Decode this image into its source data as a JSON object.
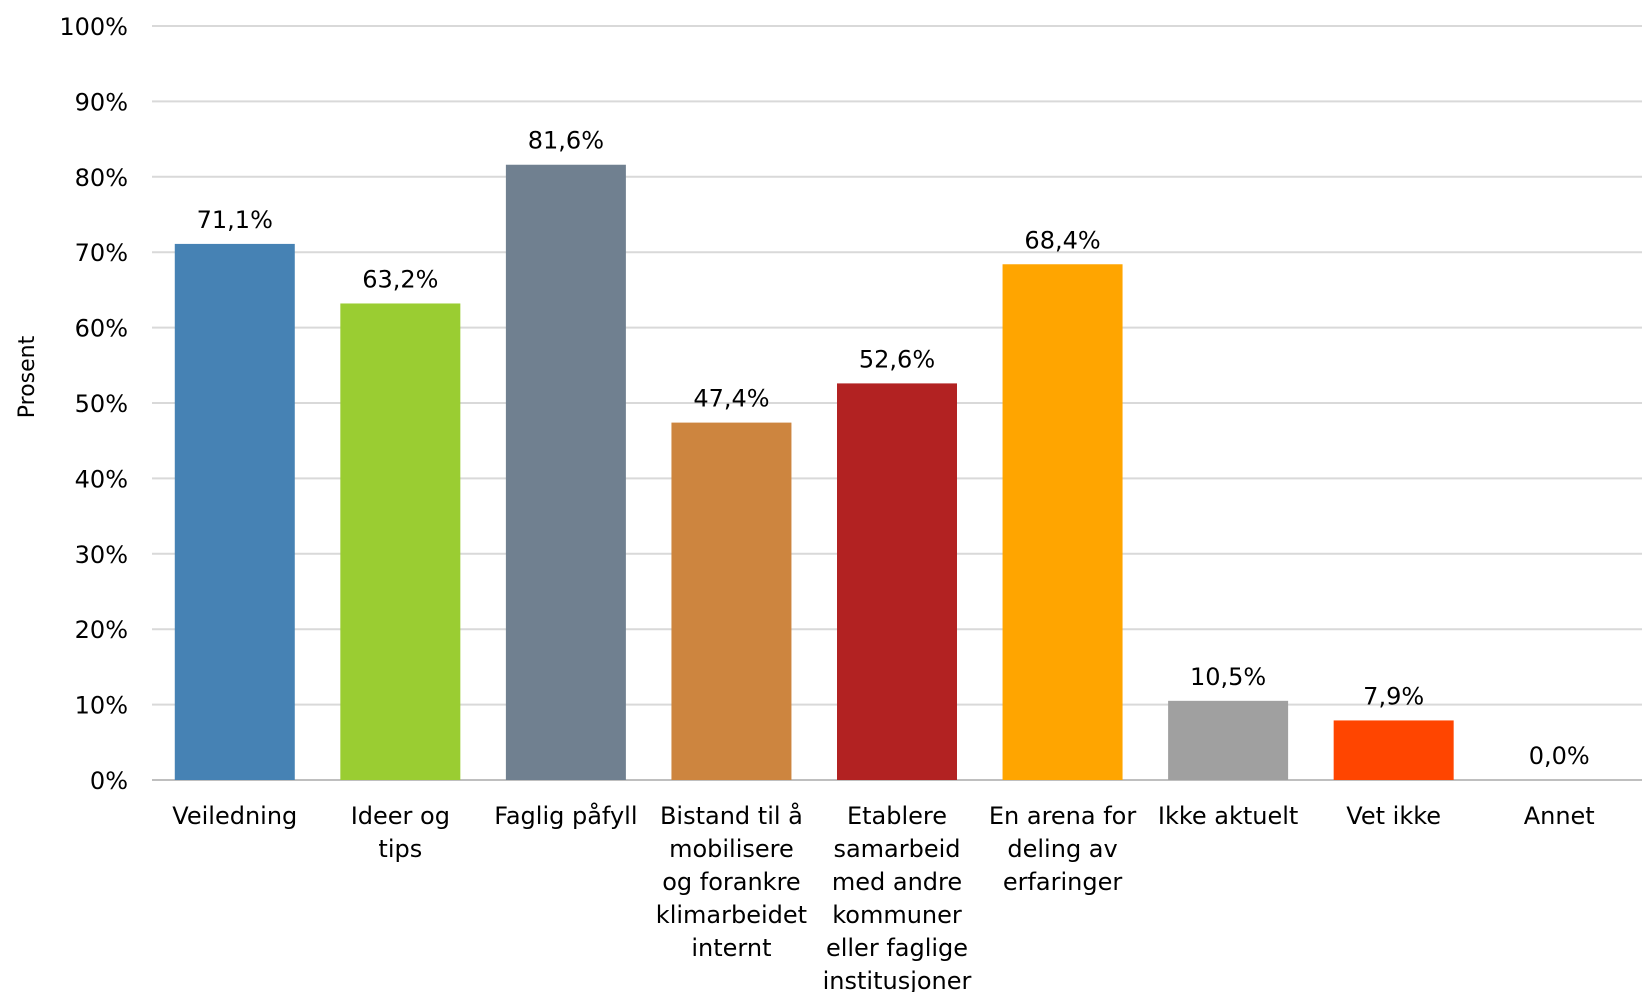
{
  "chart_data": {
    "type": "bar",
    "title": "",
    "xlabel": "",
    "ylabel": "Prosent",
    "ylim": [
      0,
      100
    ],
    "y_ticks": [
      "0%",
      "10%",
      "20%",
      "30%",
      "40%",
      "50%",
      "60%",
      "70%",
      "80%",
      "90%",
      "100%"
    ],
    "grid": true,
    "legend": "none",
    "categories": [
      [
        "Veiledning"
      ],
      [
        "Ideer og",
        "tips"
      ],
      [
        "Faglig påfyll"
      ],
      [
        "Bistand til å",
        "mobilisere",
        "og forankre",
        "klimarbeidet",
        "internt"
      ],
      [
        "Etablere",
        "samarbeid",
        "med andre",
        "kommuner",
        "eller faglige",
        "institusjoner"
      ],
      [
        "En arena for",
        "deling av",
        "erfaringer"
      ],
      [
        "Ikke aktuelt"
      ],
      [
        "Vet ikke"
      ],
      [
        "Annet"
      ]
    ],
    "values": [
      71.1,
      63.2,
      81.6,
      47.4,
      52.6,
      68.4,
      10.5,
      7.9,
      0.0
    ],
    "data_labels": [
      "71,1%",
      "63,2%",
      "81,6%",
      "47,4%",
      "52,6%",
      "68,4%",
      "10,5%",
      "7,9%",
      "0,0%"
    ],
    "colors": [
      "#4682B4",
      "#9ACD32",
      "#708090",
      "#CD853F",
      "#B22222",
      "#FFA500",
      "#A0A0A0",
      "#FF4500",
      "#5B9BD5"
    ]
  }
}
